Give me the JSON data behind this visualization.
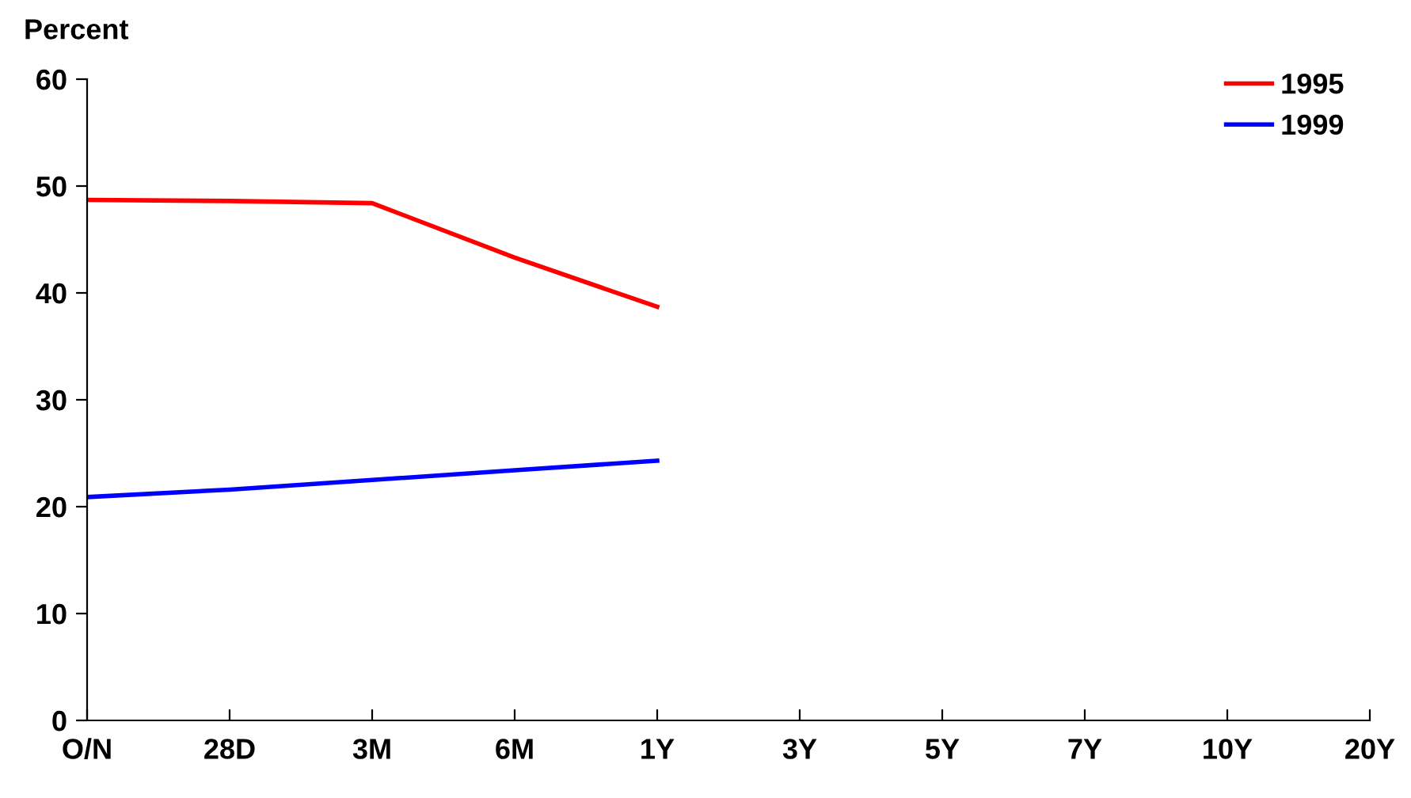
{
  "chart_data": {
    "type": "line",
    "ylabel": "Percent",
    "categories": [
      "O/N",
      "28D",
      "3M",
      "6M",
      "1Y",
      "3Y",
      "5Y",
      "7Y",
      "10Y",
      "20Y"
    ],
    "series": [
      {
        "name": "1995",
        "color": "#ff0000",
        "values": [
          48.7,
          48.6,
          48.4,
          43.3,
          38.7,
          null,
          null,
          null,
          null,
          null
        ]
      },
      {
        "name": "1999",
        "color": "#0000ff",
        "values": [
          20.9,
          21.6,
          22.5,
          23.4,
          24.3,
          null,
          null,
          null,
          null,
          null
        ]
      }
    ],
    "ylim": [
      0,
      60
    ],
    "yticks": [
      0,
      10,
      20,
      30,
      40,
      50,
      60
    ],
    "grid": false,
    "legend": "top right",
    "marker": "none",
    "line_style": "solid"
  }
}
